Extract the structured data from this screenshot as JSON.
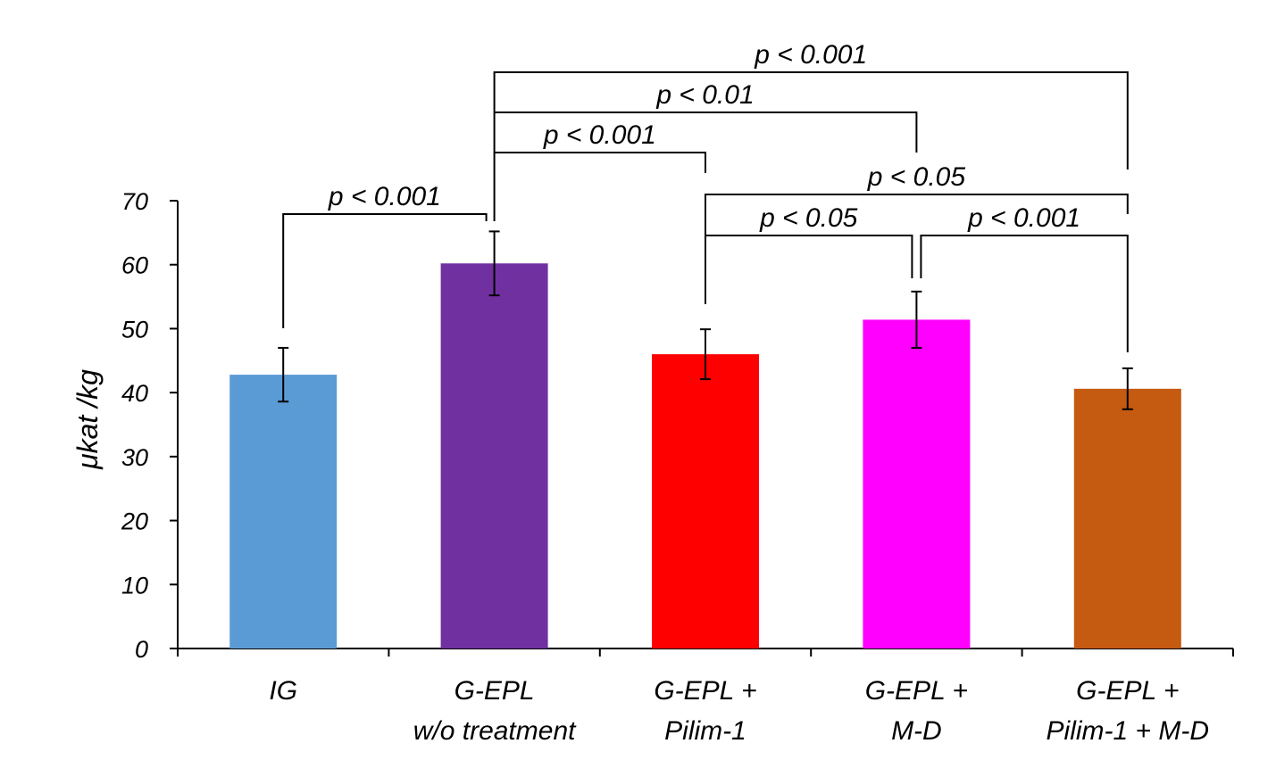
{
  "chart_data": {
    "type": "bar",
    "title": "",
    "xlabel": "",
    "ylabel": "μkat /kg",
    "ylim": [
      0,
      70
    ],
    "yticks": [
      0,
      10,
      20,
      30,
      40,
      50,
      60,
      70
    ],
    "categories": [
      [
        "IG"
      ],
      [
        "G-EPL",
        "w/o treatment"
      ],
      [
        "G-EPL +",
        "Pilim-1"
      ],
      [
        "G-EPL +",
        "M-D"
      ],
      [
        "G-EPL +",
        "Pilim-1 + M-D"
      ]
    ],
    "values": [
      42.8,
      60.2,
      46.0,
      51.4,
      40.6
    ],
    "errors": [
      4.2,
      5.0,
      3.9,
      4.4,
      3.2
    ],
    "colors": [
      "#5b9bd5",
      "#7030a0",
      "#ff0000",
      "#ff00ff",
      "#c55a11"
    ],
    "grid": false,
    "legend": "none",
    "significance": [
      {
        "from": 0,
        "to": 1,
        "label": "p < 0.001"
      },
      {
        "from": 1,
        "to": 2,
        "label": "p < 0.001"
      },
      {
        "from": 1,
        "to": 3,
        "label": "p < 0.01"
      },
      {
        "from": 1,
        "to": 4,
        "label": "p < 0.001"
      },
      {
        "from": 2,
        "to": 3,
        "label": "p < 0.05"
      },
      {
        "from": 2,
        "to": 4,
        "label": "p < 0.05"
      },
      {
        "from": 3,
        "to": 4,
        "label": "p < 0.001"
      }
    ]
  }
}
